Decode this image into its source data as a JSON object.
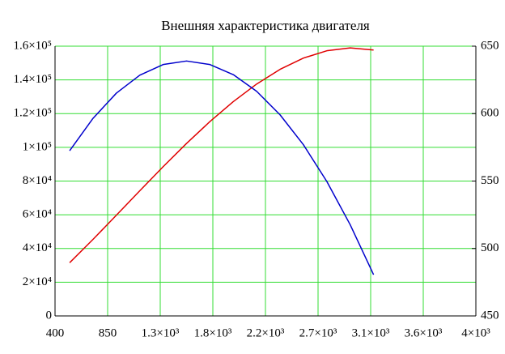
{
  "chart_data": {
    "type": "line",
    "title": "Внешняя характеристика двигателя",
    "x": [
      525,
      725,
      925,
      1125,
      1325,
      1525,
      1725,
      1925,
      2125,
      2325,
      2525,
      2725,
      2925,
      3125
    ],
    "series": [
      {
        "color": "#e00000",
        "values": [
          31560,
          45410,
          59750,
          74240,
          88540,
          102320,
          115270,
          127120,
          137560,
          146260,
          152950,
          157280,
          158970,
          157700
        ]
      },
      {
        "color": "#0000cc",
        "axis": "y2",
        "values": [
          572.5,
          596.5,
          615.2,
          628.5,
          636.4,
          639,
          636.4,
          628.9,
          616.5,
          599.1,
          576.9,
          549.7,
          517.6,
          480.6
        ]
      }
    ],
    "xlim": [
      400,
      4000
    ],
    "xticks": [
      400,
      850,
      {
        "value": 1300,
        "label": "1.3×10³"
      },
      {
        "value": 1750,
        "label": "1.8×10³"
      },
      {
        "value": 2200,
        "label": "2.2×10³"
      },
      {
        "value": 2650,
        "label": "2.7×10³"
      },
      {
        "value": 3100,
        "label": "3.1×10³"
      },
      {
        "value": 3550,
        "label": "3.6×10³"
      },
      {
        "value": 4000,
        "label": "4×10³"
      }
    ],
    "ylim": [
      0,
      160000
    ],
    "yticks": [
      0,
      {
        "value": 20000,
        "label": "2×10⁴"
      },
      {
        "value": 40000,
        "label": "4×10⁴"
      },
      {
        "value": 60000,
        "label": "6×10⁴"
      },
      {
        "value": 80000,
        "label": "8×10⁴"
      },
      {
        "value": 100000,
        "label": "1×10⁵"
      },
      {
        "value": 120000,
        "label": "1.2×10⁵"
      },
      {
        "value": 140000,
        "label": "1.4×10⁵"
      },
      {
        "value": 160000,
        "label": "1.6×10⁵"
      }
    ],
    "y2lim": [
      450,
      650
    ],
    "y2ticks": [
      450,
      500,
      550,
      600,
      650
    ],
    "grid": true,
    "grid_color": "#33dd33"
  }
}
